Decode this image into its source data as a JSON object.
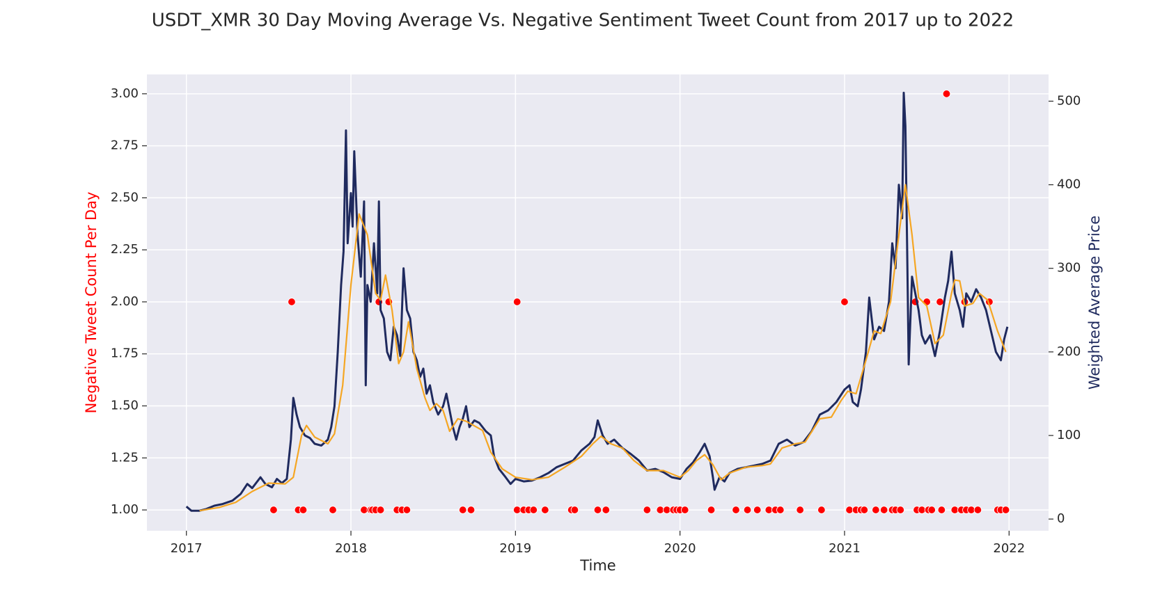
{
  "chart_data": {
    "type": "combo",
    "title": "USDT_XMR 30 Day Moving Average Vs. Negative Sentiment Tweet Count from 2017 up to 2022",
    "xlabel": "Time",
    "ylabel": "Negative Tweet Count Per Day",
    "y2label": "Weighted Average Price",
    "ylabel_color": "#ff0000",
    "y2label_color": "#1f2a5e",
    "grid": true,
    "xlim": [
      2016.76,
      2022.24
    ],
    "xticks": [
      2017,
      2018,
      2019,
      2020,
      2021,
      2022
    ],
    "ylim": [
      0.9,
      3.093
    ],
    "yticks": [
      {
        "value": 1,
        "label": "1.00"
      },
      {
        "value": 1.25,
        "label": "1.25"
      },
      {
        "value": 1.5,
        "label": "1.50"
      },
      {
        "value": 1.75,
        "label": "1.75"
      },
      {
        "value": 2,
        "label": "2.00"
      },
      {
        "value": 2.25,
        "label": "2.25"
      },
      {
        "value": 2.5,
        "label": "2.50"
      },
      {
        "value": 2.75,
        "label": "2.75"
      },
      {
        "value": 3,
        "label": "3.00"
      }
    ],
    "y2lim": [
      -14,
      532
    ],
    "y2ticks": [
      0,
      100,
      200,
      300,
      400,
      500
    ],
    "series": [
      {
        "type": "line",
        "axis": "y2",
        "color": "#1f2a5e",
        "width": 3,
        "x": [
          2017.0,
          2017.03,
          2017.08,
          2017.12,
          2017.17,
          2017.22,
          2017.28,
          2017.33,
          2017.37,
          2017.4,
          2017.45,
          2017.48,
          2017.52,
          2017.55,
          2017.58,
          2017.61,
          2017.635,
          2017.65,
          2017.67,
          2017.69,
          2017.72,
          2017.75,
          2017.78,
          2017.82,
          2017.86,
          2017.88,
          2017.9,
          2017.92,
          2017.94,
          2017.955,
          2017.97,
          2017.98,
          2018.0,
          2018.01,
          2018.02,
          2018.04,
          2018.06,
          2018.08,
          2018.09,
          2018.1,
          2018.12,
          2018.14,
          2018.16,
          2018.17,
          2018.18,
          2018.2,
          2018.22,
          2018.24,
          2018.26,
          2018.28,
          2018.3,
          2018.32,
          2018.34,
          2018.36,
          2018.38,
          2018.4,
          2018.42,
          2018.44,
          2018.46,
          2018.48,
          2018.5,
          2018.53,
          2018.56,
          2018.58,
          2018.6,
          2018.62,
          2018.64,
          2018.66,
          2018.68,
          2018.7,
          2018.72,
          2018.75,
          2018.78,
          2018.82,
          2018.85,
          2018.87,
          2018.9,
          2018.94,
          2018.97,
          2019.0,
          2019.05,
          2019.1,
          2019.15,
          2019.2,
          2019.25,
          2019.3,
          2019.35,
          2019.4,
          2019.45,
          2019.48,
          2019.5,
          2019.53,
          2019.56,
          2019.6,
          2019.65,
          2019.7,
          2019.75,
          2019.8,
          2019.85,
          2019.9,
          2019.95,
          2020.0,
          2020.04,
          2020.08,
          2020.12,
          2020.15,
          2020.18,
          2020.2,
          2020.21,
          2020.24,
          2020.27,
          2020.3,
          2020.35,
          2020.4,
          2020.45,
          2020.5,
          2020.55,
          2020.6,
          2020.65,
          2020.7,
          2020.75,
          2020.8,
          2020.85,
          2020.9,
          2020.95,
          2021.0,
          2021.03,
          2021.05,
          2021.08,
          2021.1,
          2021.13,
          2021.15,
          2021.18,
          2021.21,
          2021.24,
          2021.27,
          2021.29,
          2021.31,
          2021.33,
          2021.35,
          2021.36,
          2021.37,
          2021.38,
          2021.39,
          2021.41,
          2021.43,
          2021.45,
          2021.47,
          2021.49,
          2021.52,
          2021.55,
          2021.58,
          2021.61,
          2021.63,
          2021.65,
          2021.67,
          2021.7,
          2021.72,
          2021.74,
          2021.77,
          2021.8,
          2021.83,
          2021.86,
          2021.89,
          2021.92,
          2021.95,
          2021.97,
          2021.99
        ],
        "values": [
          15,
          10,
          10,
          12,
          16,
          18,
          22,
          30,
          42,
          37,
          50,
          42,
          38,
          48,
          43,
          48,
          95,
          145,
          125,
          110,
          100,
          97,
          90,
          88,
          95,
          110,
          135,
          200,
          280,
          320,
          465,
          330,
          390,
          350,
          440,
          340,
          290,
          380,
          160,
          280,
          260,
          330,
          270,
          380,
          250,
          240,
          200,
          190,
          230,
          220,
          195,
          300,
          250,
          240,
          200,
          190,
          170,
          180,
          150,
          160,
          140,
          125,
          135,
          150,
          130,
          110,
          95,
          110,
          120,
          135,
          110,
          118,
          115,
          105,
          100,
          75,
          60,
          50,
          42,
          48,
          45,
          46,
          50,
          55,
          62,
          66,
          70,
          82,
          90,
          98,
          118,
          100,
          90,
          95,
          85,
          78,
          70,
          58,
          60,
          56,
          50,
          48,
          60,
          68,
          80,
          90,
          75,
          50,
          35,
          50,
          45,
          55,
          60,
          62,
          64,
          66,
          70,
          90,
          95,
          88,
          92,
          105,
          125,
          130,
          140,
          155,
          160,
          140,
          135,
          155,
          200,
          265,
          215,
          230,
          225,
          260,
          330,
          300,
          400,
          360,
          510,
          470,
          330,
          185,
          290,
          270,
          250,
          220,
          210,
          220,
          195,
          225,
          265,
          285,
          320,
          270,
          250,
          230,
          270,
          260,
          275,
          265,
          250,
          225,
          200,
          190,
          215,
          230
        ]
      },
      {
        "type": "line",
        "axis": "y2",
        "color": "#f5a623",
        "width": 2.2,
        "x": [
          2017.08,
          2017.2,
          2017.3,
          2017.4,
          2017.5,
          2017.6,
          2017.65,
          2017.7,
          2017.73,
          2017.78,
          2017.86,
          2017.9,
          2017.95,
          2018.0,
          2018.05,
          2018.1,
          2018.15,
          2018.18,
          2018.21,
          2018.25,
          2018.29,
          2018.32,
          2018.35,
          2018.4,
          2018.45,
          2018.48,
          2018.52,
          2018.56,
          2018.6,
          2018.65,
          2018.7,
          2018.8,
          2018.85,
          2018.92,
          2019.0,
          2019.1,
          2019.2,
          2019.3,
          2019.4,
          2019.47,
          2019.52,
          2019.58,
          2019.65,
          2019.72,
          2019.8,
          2019.9,
          2020.0,
          2020.05,
          2020.1,
          2020.15,
          2020.2,
          2020.25,
          2020.3,
          2020.4,
          2020.5,
          2020.55,
          2020.62,
          2020.7,
          2020.76,
          2020.85,
          2020.92,
          2020.98,
          2021.02,
          2021.07,
          2021.13,
          2021.18,
          2021.22,
          2021.28,
          2021.33,
          2021.37,
          2021.41,
          2021.45,
          2021.5,
          2021.55,
          2021.6,
          2021.65,
          2021.67,
          2021.7,
          2021.73,
          2021.78,
          2021.82,
          2021.87,
          2021.93,
          2021.98
        ],
        "values": [
          10,
          14,
          20,
          33,
          43,
          42,
          50,
          100,
          112,
          98,
          90,
          102,
          160,
          280,
          365,
          340,
          270,
          262,
          292,
          250,
          186,
          200,
          236,
          180,
          145,
          130,
          138,
          130,
          105,
          120,
          117,
          106,
          80,
          60,
          50,
          47,
          50,
          62,
          75,
          90,
          99,
          90,
          85,
          70,
          58,
          58,
          50,
          58,
          70,
          77,
          65,
          47,
          55,
          62,
          64,
          66,
          85,
          90,
          92,
          120,
          122,
          142,
          153,
          150,
          190,
          225,
          222,
          260,
          340,
          400,
          340,
          265,
          255,
          210,
          220,
          270,
          286,
          285,
          255,
          258,
          270,
          262,
          225,
          200
        ]
      },
      {
        "type": "scatter",
        "axis": "y",
        "color": "#ff0000",
        "x": [
          2017.53,
          2017.64,
          2017.68,
          2017.71,
          2017.89,
          2018.08,
          2018.12,
          2018.13,
          2018.15,
          2018.17,
          2018.18,
          2018.23,
          2018.28,
          2018.31,
          2018.34,
          2018.68,
          2018.73,
          2019.01,
          2019.01,
          2019.05,
          2019.08,
          2019.11,
          2019.18,
          2019.34,
          2019.36,
          2019.5,
          2019.55,
          2019.8,
          2019.88,
          2019.92,
          2019.96,
          2019.98,
          2020.0,
          2020.03,
          2020.19,
          2020.34,
          2020.41,
          2020.47,
          2020.54,
          2020.58,
          2020.61,
          2020.73,
          2020.86,
          2021.0,
          2021.03,
          2021.07,
          2021.1,
          2021.12,
          2021.19,
          2021.24,
          2021.29,
          2021.31,
          2021.34,
          2021.43,
          2021.44,
          2021.47,
          2021.5,
          2021.51,
          2021.53,
          2021.58,
          2021.59,
          2021.62,
          2021.67,
          2021.71,
          2021.73,
          2021.74,
          2021.77,
          2021.81,
          2021.88,
          2021.93,
          2021.95,
          2021.98
        ],
        "values": [
          1,
          2,
          1,
          1,
          1,
          1,
          1,
          1,
          1,
          2,
          1,
          2,
          1,
          1,
          1,
          1,
          1,
          1,
          2,
          1,
          1,
          1,
          1,
          1,
          1,
          1,
          1,
          1,
          1,
          1,
          1,
          1,
          1,
          1,
          1,
          1,
          1,
          1,
          1,
          1,
          1,
          1,
          1,
          2,
          1,
          1,
          1,
          1,
          1,
          1,
          1,
          1,
          1,
          2,
          1,
          1,
          2,
          1,
          1,
          2,
          1,
          3,
          1,
          1,
          2,
          1,
          1,
          1,
          2,
          1,
          1,
          1
        ]
      }
    ]
  }
}
